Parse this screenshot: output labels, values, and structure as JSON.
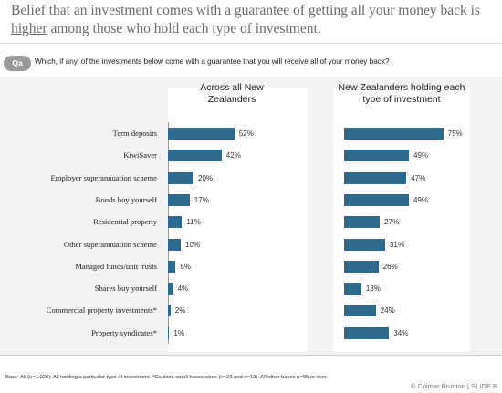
{
  "title": {
    "part1": "Belief that an investment comes with a guarantee of getting all your money back is ",
    "underlined": "higher",
    "part2": " among those who hold each type of investment."
  },
  "question": {
    "badge": "Qa",
    "text": "Which, if any, of the investments below come with a guarantee that you will receive all of your money back?"
  },
  "footer": {
    "base": "Base:  All (n=1,028); All holding a particular type of investment. *Caution, small bases sizes (n=23 and n=13). All other bases n=95 or over.",
    "brand": "© Colmar Brunton | SLIDE 8"
  },
  "chart_data": {
    "type": "bar",
    "orientation": "horizontal",
    "categories": [
      "Term deposits",
      "KiwiSaver",
      "Employer superannuation scheme",
      "Bonds buy yourself",
      "Residential property",
      "Other superannuation scheme",
      "Managed funds/unit trusts",
      "Shares buy yourself",
      "Commercial property investments*",
      "Property syndicates*"
    ],
    "series": [
      {
        "name": "Across all New Zealanders",
        "values": [
          52,
          42,
          20,
          17,
          11,
          10,
          6,
          4,
          2,
          1
        ],
        "labels": [
          "52%",
          "42%",
          "20%",
          "17%",
          "11%",
          "10%",
          "6%",
          "4%",
          "2%",
          "1%"
        ]
      },
      {
        "name": "New Zealanders holding each type of investment",
        "values": [
          75,
          49,
          47,
          49,
          27,
          31,
          26,
          13,
          24,
          34
        ],
        "labels": [
          "75%",
          "49%",
          "47%",
          "49%",
          "27%",
          "31%",
          "26%",
          "13%",
          "24%",
          "34%"
        ]
      }
    ],
    "color": "#2e6a8e",
    "xlim": [
      0,
      100
    ]
  }
}
